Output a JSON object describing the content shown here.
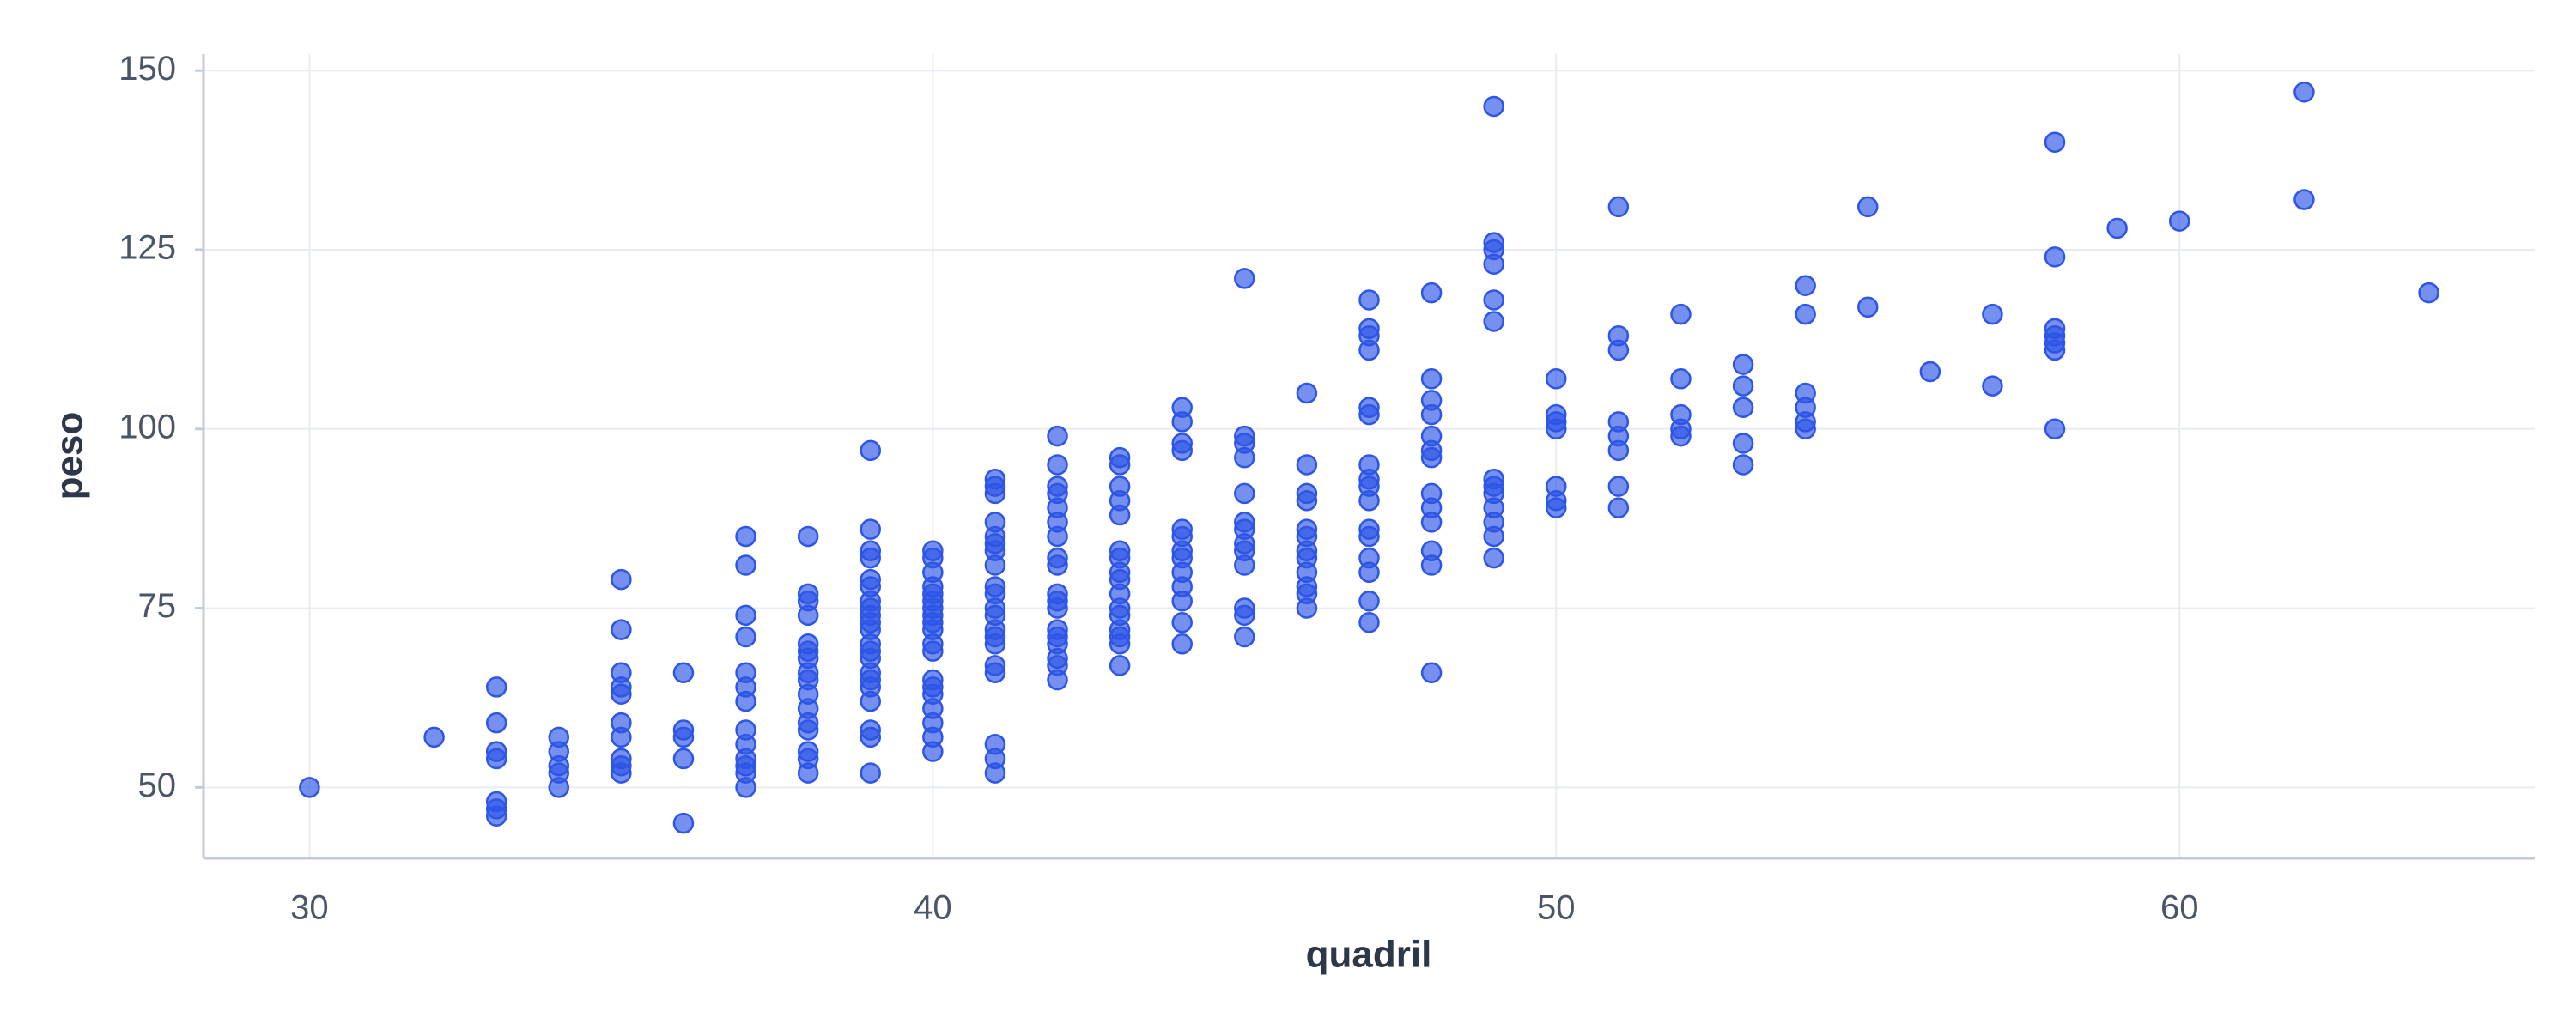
{
  "chart_data": {
    "type": "scatter",
    "x_label": "quadril",
    "y_label": "peso",
    "color": "#2d55e6",
    "xlim": [
      28.3,
      65.7
    ],
    "ylim": [
      40.1,
      152.3
    ],
    "xticks": [
      30,
      40,
      50,
      60
    ],
    "yticks": [
      50,
      75,
      100,
      125,
      150
    ],
    "grid": true,
    "x": [
      30,
      32,
      33,
      33,
      33,
      33,
      33,
      33,
      33,
      34,
      34,
      34,
      34,
      34,
      35,
      35,
      35,
      35,
      35,
      35,
      35,
      35,
      35,
      35,
      36,
      36,
      36,
      36,
      36,
      37,
      37,
      37,
      37,
      37,
      37,
      37,
      37,
      37,
      37,
      37,
      37,
      37,
      38,
      38,
      38,
      38,
      38,
      38,
      38,
      38,
      38,
      38,
      38,
      38,
      38,
      38,
      38,
      38,
      39,
      39,
      39,
      39,
      39,
      39,
      39,
      39,
      39,
      39,
      39,
      39,
      39,
      39,
      39,
      39,
      39,
      39,
      39,
      39,
      39,
      40,
      40,
      40,
      40,
      40,
      40,
      40,
      40,
      40,
      40,
      40,
      40,
      40,
      40,
      40,
      40,
      40,
      40,
      40,
      41,
      41,
      41,
      41,
      41,
      41,
      41,
      41,
      41,
      41,
      41,
      41,
      41,
      41,
      41,
      41,
      41,
      41,
      41,
      41,
      42,
      42,
      42,
      42,
      42,
      42,
      42,
      42,
      42,
      42,
      42,
      42,
      42,
      42,
      42,
      42,
      42,
      42,
      43,
      43,
      43,
      43,
      43,
      43,
      43,
      43,
      43,
      43,
      43,
      43,
      43,
      43,
      43,
      43,
      44,
      44,
      44,
      44,
      44,
      44,
      44,
      44,
      44,
      44,
      44,
      44,
      44,
      45,
      45,
      45,
      45,
      45,
      45,
      45,
      45,
      45,
      45,
      45,
      45,
      45,
      46,
      46,
      46,
      46,
      46,
      46,
      46,
      46,
      46,
      46,
      46,
      46,
      47,
      47,
      47,
      47,
      47,
      47,
      47,
      47,
      47,
      47,
      47,
      47,
      47,
      47,
      47,
      47,
      48,
      48,
      48,
      48,
      48,
      48,
      48,
      48,
      48,
      48,
      48,
      48,
      48,
      49,
      49,
      49,
      49,
      49,
      49,
      49,
      49,
      49,
      49,
      49,
      49,
      49,
      50,
      50,
      50,
      50,
      50,
      50,
      50,
      51,
      51,
      51,
      51,
      51,
      51,
      51,
      51,
      52,
      52,
      52,
      52,
      52,
      53,
      53,
      53,
      53,
      53,
      54,
      54,
      54,
      54,
      54,
      54,
      55,
      55,
      56,
      57,
      57,
      58,
      58,
      58,
      58,
      58,
      58,
      58,
      59,
      60,
      62,
      62,
      64
    ],
    "y": [
      50,
      57,
      64,
      59,
      55,
      54,
      48,
      47,
      46,
      57,
      55,
      53,
      52,
      50,
      79,
      72,
      66,
      64,
      63,
      59,
      57,
      54,
      53,
      52,
      66,
      58,
      57,
      54,
      45,
      85,
      81,
      74,
      71,
      66,
      64,
      62,
      58,
      56,
      54,
      53,
      52,
      50,
      85,
      77,
      76,
      74,
      70,
      69,
      68,
      66,
      65,
      63,
      61,
      59,
      58,
      55,
      54,
      52,
      97,
      86,
      83,
      82,
      79,
      78,
      76,
      75,
      74,
      73,
      72,
      70,
      69,
      68,
      66,
      65,
      64,
      62,
      58,
      57,
      52,
      83,
      82,
      80,
      78,
      77,
      76,
      75,
      74,
      73,
      72,
      70,
      69,
      65,
      64,
      63,
      61,
      59,
      57,
      55,
      93,
      92,
      91,
      87,
      85,
      84,
      83,
      81,
      78,
      77,
      75,
      74,
      72,
      71,
      70,
      67,
      66,
      56,
      54,
      52,
      99,
      95,
      92,
      91,
      89,
      87,
      85,
      82,
      81,
      77,
      76,
      75,
      72,
      71,
      70,
      68,
      67,
      65,
      96,
      95,
      92,
      90,
      88,
      83,
      82,
      80,
      79,
      77,
      75,
      74,
      72,
      71,
      70,
      67,
      103,
      101,
      98,
      97,
      86,
      85,
      83,
      82,
      80,
      78,
      76,
      73,
      70,
      121,
      99,
      98,
      96,
      91,
      87,
      86,
      84,
      83,
      81,
      75,
      74,
      71,
      105,
      95,
      91,
      90,
      86,
      85,
      83,
      82,
      80,
      78,
      77,
      75,
      118,
      114,
      113,
      111,
      103,
      102,
      95,
      93,
      92,
      90,
      86,
      85,
      82,
      80,
      76,
      73,
      119,
      107,
      104,
      102,
      99,
      97,
      96,
      91,
      89,
      87,
      83,
      81,
      66,
      145,
      126,
      125,
      123,
      118,
      115,
      93,
      92,
      91,
      89,
      87,
      85,
      82,
      107,
      102,
      101,
      100,
      92,
      90,
      89,
      131,
      113,
      111,
      101,
      99,
      97,
      92,
      89,
      116,
      107,
      102,
      100,
      99,
      109,
      106,
      103,
      98,
      95,
      120,
      116,
      105,
      103,
      101,
      100,
      131,
      117,
      108,
      116,
      106,
      140,
      124,
      114,
      113,
      112,
      111,
      100,
      128,
      129,
      147,
      132,
      119
    ]
  }
}
